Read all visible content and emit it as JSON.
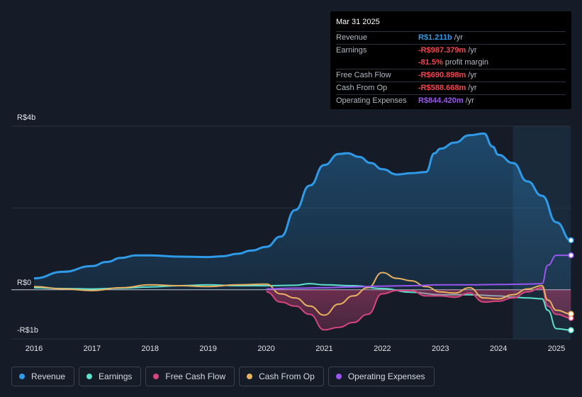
{
  "tooltip": {
    "date": "Mar 31 2025",
    "rows": [
      {
        "label": "Revenue",
        "value": "R$1.211b",
        "unit": "/yr",
        "color": "#2f9ae8"
      },
      {
        "label": "Earnings",
        "value": "-R$987.379m",
        "unit": "/yr",
        "color": "#f0474d"
      },
      {
        "label": "",
        "value": "-81.5%",
        "unit": "profit margin",
        "color": "#f0474d"
      },
      {
        "label": "Free Cash Flow",
        "value": "-R$690.898m",
        "unit": "/yr",
        "color": "#f0474d"
      },
      {
        "label": "Cash From Op",
        "value": "-R$588.668m",
        "unit": "/yr",
        "color": "#f0474d"
      },
      {
        "label": "Operating Expenses",
        "value": "R$844.420m",
        "unit": "/yr",
        "color": "#9b55f0"
      }
    ]
  },
  "legend": [
    {
      "label": "Revenue",
      "color": "#2f9ae8"
    },
    {
      "label": "Earnings",
      "color": "#5fe0cf"
    },
    {
      "label": "Free Cash Flow",
      "color": "#d6457e"
    },
    {
      "label": "Cash From Op",
      "color": "#e8b160"
    },
    {
      "label": "Operating Expenses",
      "color": "#9b55f0"
    }
  ],
  "chart_data": {
    "type": "line",
    "title": "",
    "xlabel": "",
    "ylabel": "",
    "y_axis_labels": {
      "top": "R$4b",
      "zero": "R$0",
      "bottom": "-R$1b"
    },
    "ylim": [
      -1.2,
      4.0
    ],
    "xlim": [
      2016.0,
      2025.25
    ],
    "x_ticks": [
      "2016",
      "2017",
      "2018",
      "2019",
      "2020",
      "2021",
      "2022",
      "2023",
      "2024",
      "2025"
    ],
    "forecast_shade_start": 2024.25,
    "series": [
      {
        "name": "Revenue",
        "color": "#2f9ae8",
        "fill": true,
        "x": [
          2016.0,
          2016.5,
          2017.0,
          2017.25,
          2017.5,
          2017.75,
          2018.0,
          2018.5,
          2019.0,
          2019.25,
          2019.5,
          2019.75,
          2020.0,
          2020.25,
          2020.5,
          2020.75,
          2021.0,
          2021.25,
          2021.4,
          2021.6,
          2021.8,
          2022.0,
          2022.25,
          2022.5,
          2022.75,
          2022.9,
          2023.0,
          2023.25,
          2023.5,
          2023.75,
          2023.9,
          2024.0,
          2024.25,
          2024.5,
          2024.75,
          2025.0,
          2025.25
        ],
        "values": [
          0.28,
          0.44,
          0.58,
          0.68,
          0.78,
          0.84,
          0.84,
          0.81,
          0.8,
          0.82,
          0.88,
          0.96,
          1.05,
          1.3,
          1.95,
          2.55,
          3.05,
          3.32,
          3.34,
          3.25,
          3.1,
          2.95,
          2.82,
          2.85,
          2.88,
          3.34,
          3.45,
          3.6,
          3.78,
          3.82,
          3.5,
          3.3,
          3.1,
          2.65,
          2.3,
          1.65,
          1.211
        ]
      },
      {
        "name": "Earnings",
        "color": "#5fe0cf",
        "fill": false,
        "x": [
          2016.0,
          2016.5,
          2017.0,
          2017.5,
          2018.0,
          2018.5,
          2019.0,
          2019.5,
          2020.0,
          2020.5,
          2020.75,
          2021.0,
          2021.5,
          2022.0,
          2022.5,
          2023.0,
          2023.5,
          2024.0,
          2024.25,
          2024.5,
          2024.75,
          2024.85,
          2025.0,
          2025.25
        ],
        "values": [
          0.05,
          0.03,
          0.02,
          0.04,
          0.07,
          0.1,
          0.12,
          0.1,
          0.1,
          0.11,
          0.15,
          0.12,
          0.1,
          0.03,
          -0.06,
          -0.12,
          -0.12,
          -0.15,
          -0.18,
          -0.2,
          -0.22,
          -0.5,
          -0.95,
          -0.987
        ]
      },
      {
        "name": "Free Cash Flow",
        "color": "#d6457e",
        "fill": true,
        "x": [
          2020.0,
          2020.25,
          2020.5,
          2020.75,
          2021.0,
          2021.25,
          2021.5,
          2021.75,
          2022.0,
          2022.25,
          2022.5,
          2022.75,
          2023.0,
          2023.25,
          2023.5,
          2023.75,
          2024.0,
          2024.25,
          2024.5,
          2024.75,
          2024.85,
          2025.0,
          2025.25
        ],
        "values": [
          -0.05,
          -0.3,
          -0.4,
          -0.6,
          -0.98,
          -0.92,
          -0.8,
          -0.6,
          -0.1,
          -0.02,
          -0.02,
          -0.15,
          -0.15,
          -0.18,
          -0.08,
          -0.3,
          -0.28,
          -0.2,
          -0.05,
          0.05,
          -0.4,
          -0.6,
          -0.691
        ]
      },
      {
        "name": "Cash From Op",
        "color": "#e8b160",
        "fill": false,
        "x": [
          2016.0,
          2016.5,
          2017.0,
          2017.5,
          2018.0,
          2018.5,
          2019.0,
          2019.5,
          2020.0,
          2020.25,
          2020.5,
          2020.75,
          2021.0,
          2021.25,
          2021.5,
          2021.75,
          2022.0,
          2022.25,
          2022.5,
          2022.75,
          2023.0,
          2023.25,
          2023.5,
          2023.75,
          2024.0,
          2024.25,
          2024.5,
          2024.75,
          2024.85,
          2025.0,
          2025.25
        ],
        "values": [
          0.08,
          0.02,
          -0.02,
          0.05,
          0.12,
          0.1,
          0.08,
          0.12,
          0.14,
          -0.1,
          -0.2,
          -0.4,
          -0.62,
          -0.35,
          -0.15,
          0.05,
          0.42,
          0.28,
          0.22,
          0.08,
          -0.05,
          -0.08,
          0.05,
          -0.2,
          -0.22,
          -0.12,
          0.02,
          0.1,
          -0.25,
          -0.5,
          -0.589
        ]
      },
      {
        "name": "Operating Expenses",
        "color": "#9b55f0",
        "fill": false,
        "x": [
          2020.0,
          2020.5,
          2021.0,
          2021.5,
          2022.0,
          2022.5,
          2023.0,
          2023.5,
          2024.0,
          2024.5,
          2024.75,
          2024.85,
          2025.0,
          2025.25
        ],
        "values": [
          0.02,
          0.04,
          0.05,
          0.07,
          0.09,
          0.1,
          0.12,
          0.12,
          0.13,
          0.14,
          0.15,
          0.6,
          0.844,
          0.844
        ]
      }
    ]
  }
}
